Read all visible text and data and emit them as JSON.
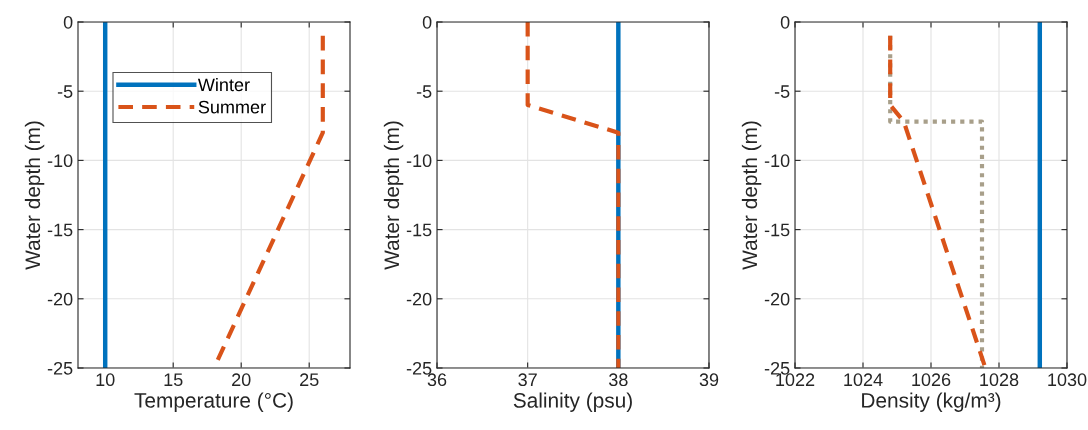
{
  "chart_data": [
    {
      "type": "line",
      "xlabel": "Temperature (°C)",
      "ylabel": "Water depth (m)",
      "xlim": [
        8,
        28
      ],
      "xticks": [
        10,
        15,
        20,
        25
      ],
      "ylim": [
        -25,
        0
      ],
      "yticks": [
        -25,
        -20,
        -15,
        -10,
        -5,
        0
      ],
      "grid": true,
      "legend": "top",
      "series": [
        {
          "name": "Winter",
          "color": "#0072bd",
          "line_style": "solid",
          "x": [
            10,
            10
          ],
          "values": [
            0,
            -25
          ]
        },
        {
          "name": "Summer",
          "color": "#d95319",
          "line_style": "dashed",
          "x": [
            26,
            26,
            18
          ],
          "values": [
            -1,
            -8,
            -25
          ]
        }
      ]
    },
    {
      "type": "line",
      "xlabel": "Salinity (psu)",
      "ylabel": "Water depth (m)",
      "xlim": [
        36,
        39
      ],
      "xticks": [
        36,
        37,
        38,
        39
      ],
      "ylim": [
        -25,
        0
      ],
      "yticks": [
        -25,
        -20,
        -15,
        -10,
        -5,
        0
      ],
      "grid": true,
      "series": [
        {
          "color": "#0072bd",
          "line_style": "solid",
          "x": [
            38,
            38
          ],
          "values": [
            0,
            -25
          ]
        },
        {
          "color": "#d95319",
          "line_style": "dashed",
          "x": [
            37,
            37,
            38,
            38
          ],
          "values": [
            0,
            -6,
            -8,
            -25
          ]
        }
      ]
    },
    {
      "type": "line",
      "xlabel": "Density (kg/m³)",
      "ylabel": "Water depth (m)",
      "xlim": [
        1022,
        1030
      ],
      "xticks": [
        1022,
        1024,
        1026,
        1028,
        1030
      ],
      "ylim": [
        -25,
        0
      ],
      "yticks": [
        -25,
        -20,
        -15,
        -10,
        -5,
        0
      ],
      "grid": true,
      "series": [
        {
          "color": "#0072bd",
          "line_style": "solid",
          "x": [
            1029.2,
            1029.2
          ],
          "values": [
            0,
            -25
          ]
        },
        {
          "color": "#a89f8a",
          "line_style": "dotted",
          "x": [
            1024.8,
            1024.8,
            1027.5,
            1027.5
          ],
          "values": [
            -1,
            -7.2,
            -7.2,
            -25
          ]
        },
        {
          "color": "#d95319",
          "line_style": "dashed",
          "x": [
            1024.8,
            1024.8,
            1025.2,
            1027.6
          ],
          "values": [
            -1,
            -6,
            -7.2,
            -25
          ]
        }
      ]
    }
  ]
}
